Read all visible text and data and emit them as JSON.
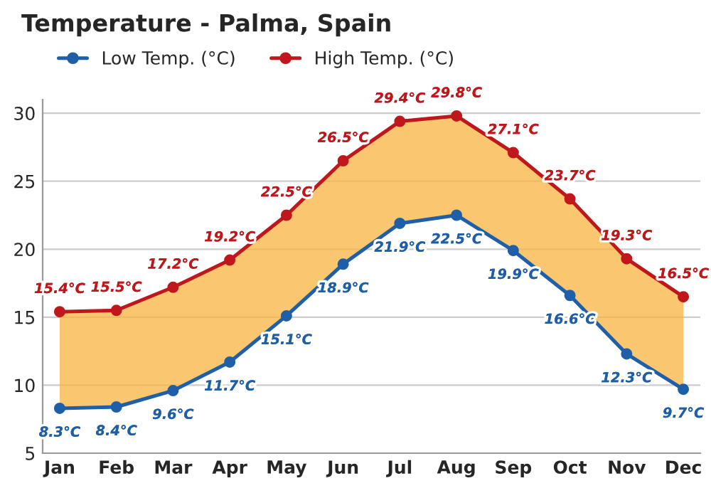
{
  "chart_data": {
    "type": "line",
    "title": "Temperature - Palma, Spain",
    "categories": [
      "Jan",
      "Feb",
      "Mar",
      "Apr",
      "May",
      "Jun",
      "Jul",
      "Aug",
      "Sep",
      "Oct",
      "Nov",
      "Dec"
    ],
    "series": [
      {
        "name": "Low Temp. (°C)",
        "color": "#1f5fa8",
        "values": [
          8.3,
          8.4,
          9.6,
          11.7,
          15.1,
          18.9,
          21.9,
          22.5,
          19.9,
          16.6,
          12.3,
          9.7
        ],
        "value_labels": [
          "8.3°C",
          "8.4°C",
          "9.6°C",
          "11.7°C",
          "15.1°C",
          "18.9°C",
          "21.9°C",
          "22.5°C",
          "19.9°C",
          "16.6°C",
          "12.3°C",
          "9.7°C"
        ]
      },
      {
        "name": "High Temp. (°C)",
        "color": "#c0171c",
        "values": [
          15.4,
          15.5,
          17.2,
          19.2,
          22.5,
          26.5,
          29.4,
          29.8,
          27.1,
          23.7,
          19.3,
          16.5
        ],
        "value_labels": [
          "15.4°C",
          "15.5°C",
          "17.2°C",
          "19.2°C",
          "22.5°C",
          "26.5°C",
          "29.4°C",
          "29.8°C",
          "27.1°C",
          "23.7°C",
          "19.3°C",
          "16.5°C"
        ],
        "lower": [
          8.3,
          8.4,
          9.6,
          11.7,
          15.1,
          18.9,
          21.9,
          22.5,
          19.9,
          16.6,
          12.3,
          9.7
        ],
        "upper": [
          15.4,
          15.5,
          17.2,
          19.2,
          22.5,
          26.5,
          29.4,
          29.8,
          27.1,
          23.7,
          19.3,
          16.5
        ]
      }
    ],
    "ylim": [
      5,
      31
    ],
    "yticks": [
      5,
      10,
      15,
      20,
      25,
      30
    ],
    "grid": "y",
    "legend": "top left",
    "marker": "circle",
    "line_style": "solid"
  }
}
